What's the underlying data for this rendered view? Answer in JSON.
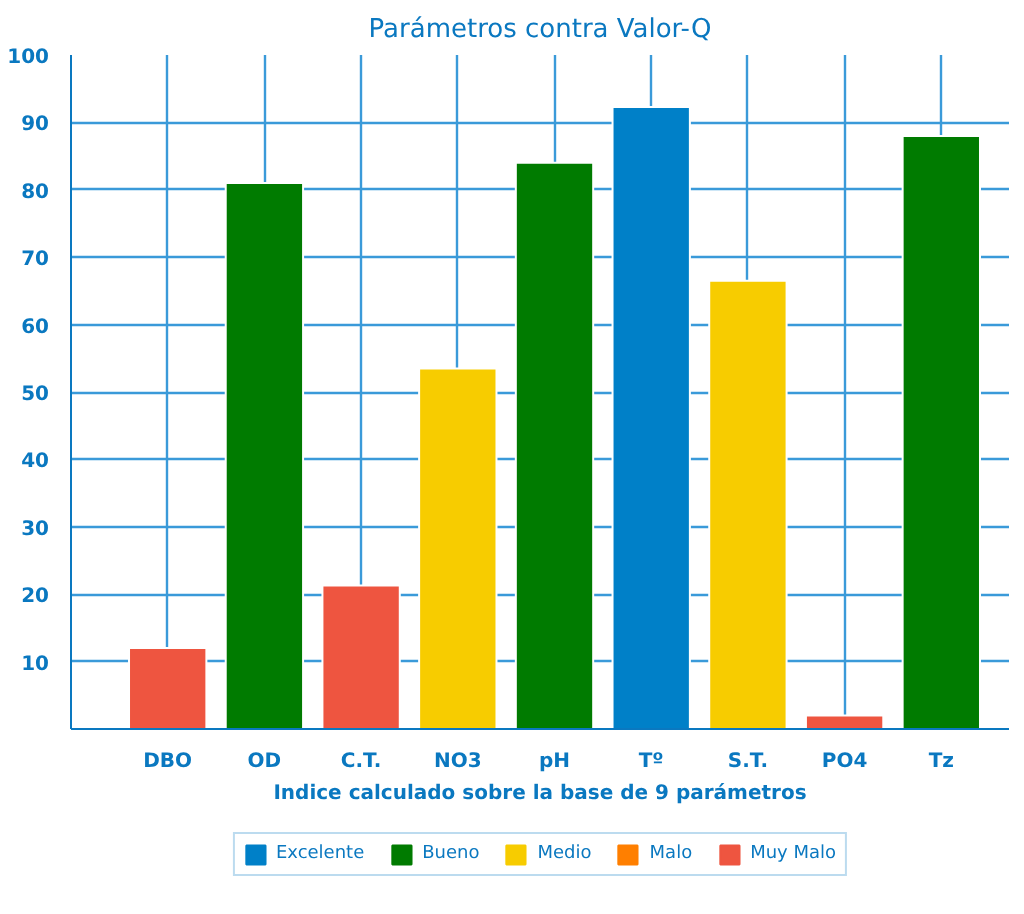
{
  "chart_data": {
    "type": "bar",
    "title": "Parámetros contra Valor-Q",
    "xlabel": "Indice calculado sobre la base de 9 parámetros",
    "categories": [
      "DBO",
      "OD",
      "C.T.",
      "NO3",
      "pH",
      "Tº",
      "S.T.",
      "PO4",
      "Tz"
    ],
    "series": [
      {
        "name": "Excelente",
        "color": "#0080c8",
        "values": [
          null,
          null,
          null,
          null,
          null,
          92.3,
          null,
          null,
          null
        ]
      },
      {
        "name": "Bueno",
        "color": "#007b00",
        "values": [
          null,
          81,
          null,
          null,
          84,
          null,
          null,
          null,
          88
        ]
      },
      {
        "name": "Medio",
        "color": "#f7cc00",
        "values": [
          null,
          null,
          null,
          53.5,
          null,
          null,
          66.5,
          null,
          null
        ]
      },
      {
        "name": "Malo",
        "color": "#ff7f00",
        "values": [
          null,
          null,
          null,
          null,
          null,
          null,
          null,
          null,
          null
        ]
      },
      {
        "name": "Muy Malo",
        "color": "#ee5540",
        "values": [
          12,
          null,
          21.3,
          null,
          null,
          null,
          null,
          2,
          null
        ]
      }
    ],
    "ylim": [
      0,
      100
    ],
    "yticks": [
      {
        "value": 0,
        "label": null
      },
      10,
      20,
      30,
      40,
      50,
      60,
      70,
      80,
      90,
      100
    ],
    "grid": true,
    "legend": "bottom"
  }
}
